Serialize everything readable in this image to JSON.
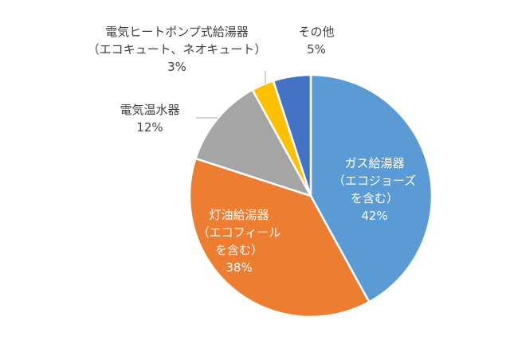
{
  "chart_data": {
    "type": "pie",
    "title": "",
    "start_angle_deg": 0,
    "direction": "clockwise",
    "slices": [
      {
        "key": "gas",
        "label_lines": [
          "ガス給湯器",
          "（エコジョーズ",
          "を含む）"
        ],
        "value": 42,
        "display": "42%",
        "color": "#5b9bd5",
        "label_inside": true
      },
      {
        "key": "kerosene",
        "label_lines": [
          "灯油給湯器",
          "（エコフィール",
          "を含む）"
        ],
        "value": 38,
        "display": "38%",
        "color": "#ed7d31",
        "label_inside": true
      },
      {
        "key": "electric",
        "label_lines": [
          "電気温水器"
        ],
        "value": 12,
        "display": "12%",
        "color": "#a5a5a5",
        "label_inside": false
      },
      {
        "key": "heatpump",
        "label_lines": [
          "電気ヒートポンプ式給湯器",
          "（エコキュート、ネオキュート）"
        ],
        "value": 3,
        "display": "3%",
        "color": "#ffc000",
        "label_inside": false
      },
      {
        "key": "other",
        "label_lines": [
          "その他"
        ],
        "value": 5,
        "display": "5%",
        "color": "#4472c4",
        "label_inside": false
      }
    ]
  }
}
